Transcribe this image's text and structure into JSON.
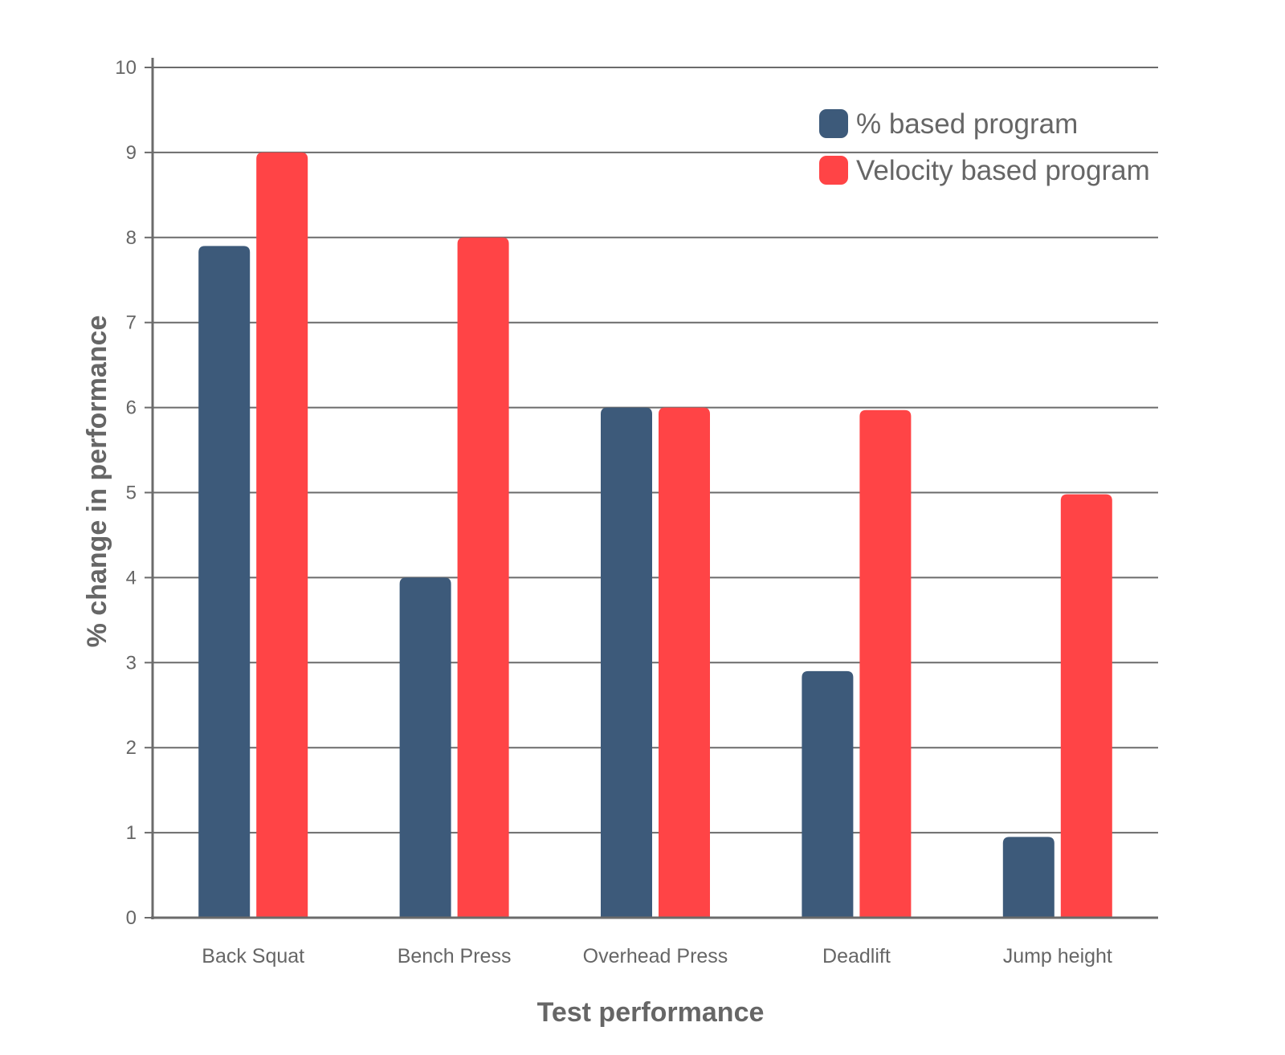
{
  "chart_data": {
    "type": "bar",
    "categories": [
      "Back Squat",
      "Bench Press",
      "Overhead Press",
      "Deadlift",
      "Jump height"
    ],
    "series": [
      {
        "name": "% based program",
        "color": "#3d5a7a",
        "values": [
          7.9,
          4.0,
          6.0,
          2.9,
          0.95
        ]
      },
      {
        "name": "Velocity based program",
        "color": "#ff4446",
        "values": [
          9.0,
          8.0,
          6.0,
          5.97,
          4.98
        ]
      }
    ],
    "xlabel": "Test performance",
    "ylabel": "% change in performance",
    "ylim": [
      0,
      10
    ],
    "yticks": [
      0,
      1,
      2,
      3,
      4,
      5,
      6,
      7,
      8,
      9,
      10
    ],
    "grid": true,
    "legend": "top-right"
  }
}
